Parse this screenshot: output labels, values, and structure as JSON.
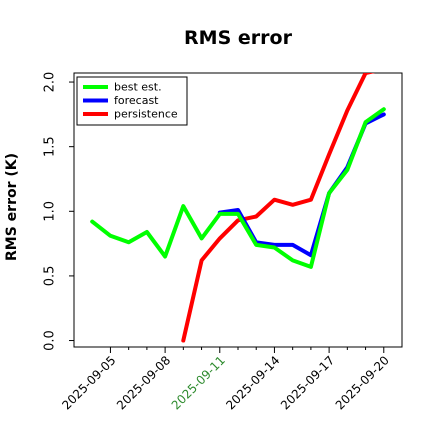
{
  "chart_data": {
    "type": "line",
    "title": "RMS error",
    "ylabel": "RMS error (K)",
    "xlabel": "",
    "ylim": [
      -0.05,
      2.07
    ],
    "xlim": [
      "2025-09-03",
      "2025-09-21"
    ],
    "grid": false,
    "legend_position": "top-left",
    "yticks": [
      0.0,
      0.5,
      1.0,
      1.5,
      2.0
    ],
    "ytick_labels": [
      "0.0",
      "0.5",
      "1.0",
      "1.5",
      "2.0"
    ],
    "xticks": [
      "2025-09-05",
      "2025-09-06",
      "2025-09-07",
      "2025-09-08",
      "2025-09-09",
      "2025-09-10",
      "2025-09-11",
      "2025-09-12",
      "2025-09-13",
      "2025-09-14",
      "2025-09-15",
      "2025-09-16",
      "2025-09-17",
      "2025-09-18",
      "2025-09-19",
      "2025-09-20"
    ],
    "xtick_labels": [
      {
        "date": "2025-09-05",
        "text": "2025-09-05",
        "color": "#000000"
      },
      {
        "date": "2025-09-08",
        "text": "2025-09-08",
        "color": "#000000"
      },
      {
        "date": "2025-09-11",
        "text": "2025-09-11",
        "color": "#2e8b2e"
      },
      {
        "date": "2025-09-14",
        "text": "2025-09-14",
        "color": "#000000"
      },
      {
        "date": "2025-09-17",
        "text": "2025-09-17",
        "color": "#000000"
      },
      {
        "date": "2025-09-20",
        "text": "2025-09-20",
        "color": "#000000"
      }
    ],
    "x": [
      "2025-09-04",
      "2025-09-05",
      "2025-09-06",
      "2025-09-07",
      "2025-09-08",
      "2025-09-09",
      "2025-09-10",
      "2025-09-11",
      "2025-09-12",
      "2025-09-13",
      "2025-09-14",
      "2025-09-15",
      "2025-09-16",
      "2025-09-17",
      "2025-09-18",
      "2025-09-19",
      "2025-09-20"
    ],
    "series": [
      {
        "name": "persistence",
        "color": "#ff0000",
        "values": [
          null,
          null,
          null,
          null,
          null,
          0.0,
          0.62,
          0.79,
          0.93,
          0.96,
          1.09,
          1.05,
          1.09,
          1.44,
          1.78,
          2.07,
          2.1
        ]
      },
      {
        "name": "forecast",
        "color": "#0000ff",
        "values": [
          null,
          null,
          null,
          null,
          null,
          null,
          null,
          0.99,
          1.01,
          0.76,
          0.74,
          0.74,
          0.66,
          1.14,
          1.34,
          1.68,
          1.75
        ]
      },
      {
        "name": "best est.",
        "color": "#00ff00",
        "values": [
          0.92,
          0.81,
          0.76,
          0.84,
          0.65,
          1.04,
          0.79,
          0.98,
          0.98,
          0.74,
          0.72,
          0.62,
          0.57,
          1.14,
          1.32,
          1.69,
          1.79
        ]
      }
    ],
    "legend_order": [
      "best est.",
      "forecast",
      "persistence"
    ]
  }
}
